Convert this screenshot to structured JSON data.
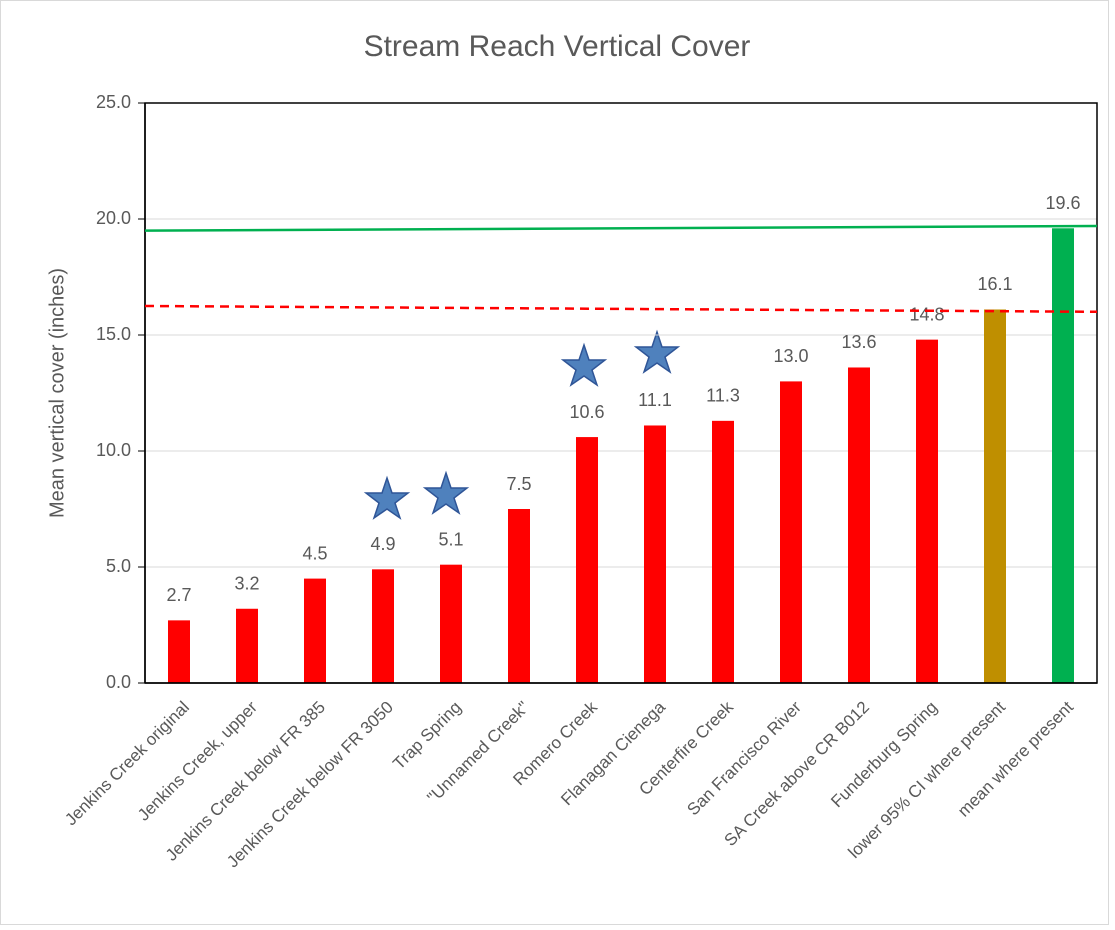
{
  "chart_data": {
    "type": "bar",
    "title": "Stream Reach Vertical Cover",
    "y_label": "Mean vertical cover (inches)",
    "categories": [
      "Jenkins Creek original",
      "Jenkins Creek, upper",
      "Jenkins Creek below FR 385",
      "Jenkins Creek below FR 3050",
      "Trap Spring",
      "\"Unnamed Creek\"",
      "Romero Creek",
      "Flanagan Cienega",
      "Centerfire Creek",
      "San Francisco River",
      "SA Creek above CR B012",
      "Funderburg Spring",
      "lower 95% CI where present",
      "mean where present"
    ],
    "values": [
      2.7,
      3.2,
      4.5,
      4.9,
      5.1,
      7.5,
      10.6,
      11.1,
      11.3,
      13.0,
      13.6,
      14.8,
      16.1,
      19.6
    ],
    "value_labels": [
      "2.7",
      "3.2",
      "4.5",
      "4.9",
      "5.1",
      "7.5",
      "10.6",
      "11.1",
      "11.3",
      "13.0",
      "13.6",
      "14.8",
      "16.1",
      "19.6"
    ],
    "colors": [
      "#ff0000",
      "#ff0000",
      "#ff0000",
      "#ff0000",
      "#ff0000",
      "#ff0000",
      "#ff0000",
      "#ff0000",
      "#ff0000",
      "#ff0000",
      "#ff0000",
      "#ff0000",
      "#bf8f00",
      "#00b050"
    ],
    "ylim": [
      0,
      25
    ],
    "yticks": [
      {
        "value": 0,
        "label": "0.0"
      },
      {
        "value": 5,
        "label": "5.0"
      },
      {
        "value": 10,
        "label": "10.0"
      },
      {
        "value": 15,
        "label": "15.0"
      },
      {
        "value": 20,
        "label": "20.0"
      },
      {
        "value": 25,
        "label": "25.0"
      }
    ],
    "reference_lines": [
      {
        "color": "#00b050",
        "style": "solid",
        "y_start": 19.5,
        "y_end": 19.7
      },
      {
        "color": "#ff0000",
        "style": "dashed",
        "y_start": 16.25,
        "y_end": 16.0
      }
    ]
  }
}
